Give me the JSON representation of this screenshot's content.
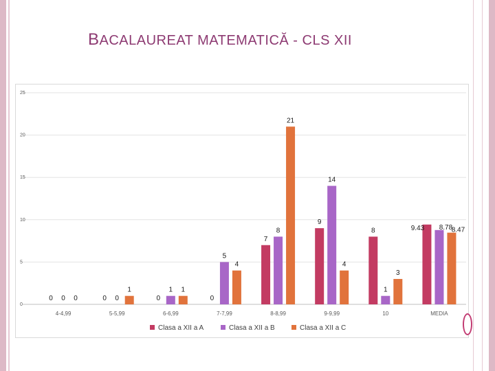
{
  "slide": {
    "title_first": "B",
    "title_rest": "ACALAUREAT MATEMATICĂ - CLS XII"
  },
  "colors": {
    "series_a": "#c33b62",
    "series_b": "#a866c7",
    "series_c": "#e1733c",
    "title": "#8d3a72",
    "frame": "#ddb9c6"
  },
  "chart_data": {
    "type": "bar",
    "title": "BACALAUREAT MATEMATICĂ - CLS XII",
    "xlabel": "",
    "ylabel": "",
    "ylim": [
      0,
      25
    ],
    "yticks": [
      "0",
      "5",
      "10",
      "15",
      "20",
      "25"
    ],
    "grid": true,
    "legend_position": "bottom",
    "categories": [
      "4-4,99",
      "5-5,99",
      "6-6,99",
      "7-7,99",
      "8-8,99",
      "9-9,99",
      "10",
      "MEDIA"
    ],
    "series": [
      {
        "name": "Clasa a XII a A",
        "values": [
          0,
          0,
          0,
          0,
          7,
          9,
          8,
          9.43
        ],
        "labels": [
          "0",
          "0",
          "0",
          "0",
          "7",
          "9",
          "8",
          "9.43"
        ]
      },
      {
        "name": "Clasa a XII a B",
        "values": [
          0,
          0,
          1,
          5,
          8,
          14,
          1,
          8.78
        ],
        "labels": [
          "0",
          "0",
          "1",
          "5",
          "8",
          "14",
          "1",
          "8.78"
        ]
      },
      {
        "name": "Clasa a XII a C",
        "values": [
          0,
          1,
          1,
          4,
          21,
          4,
          3,
          8.47
        ],
        "labels": [
          "0",
          "1",
          "1",
          "4",
          "21",
          "4",
          "3",
          "8.47"
        ]
      }
    ]
  }
}
